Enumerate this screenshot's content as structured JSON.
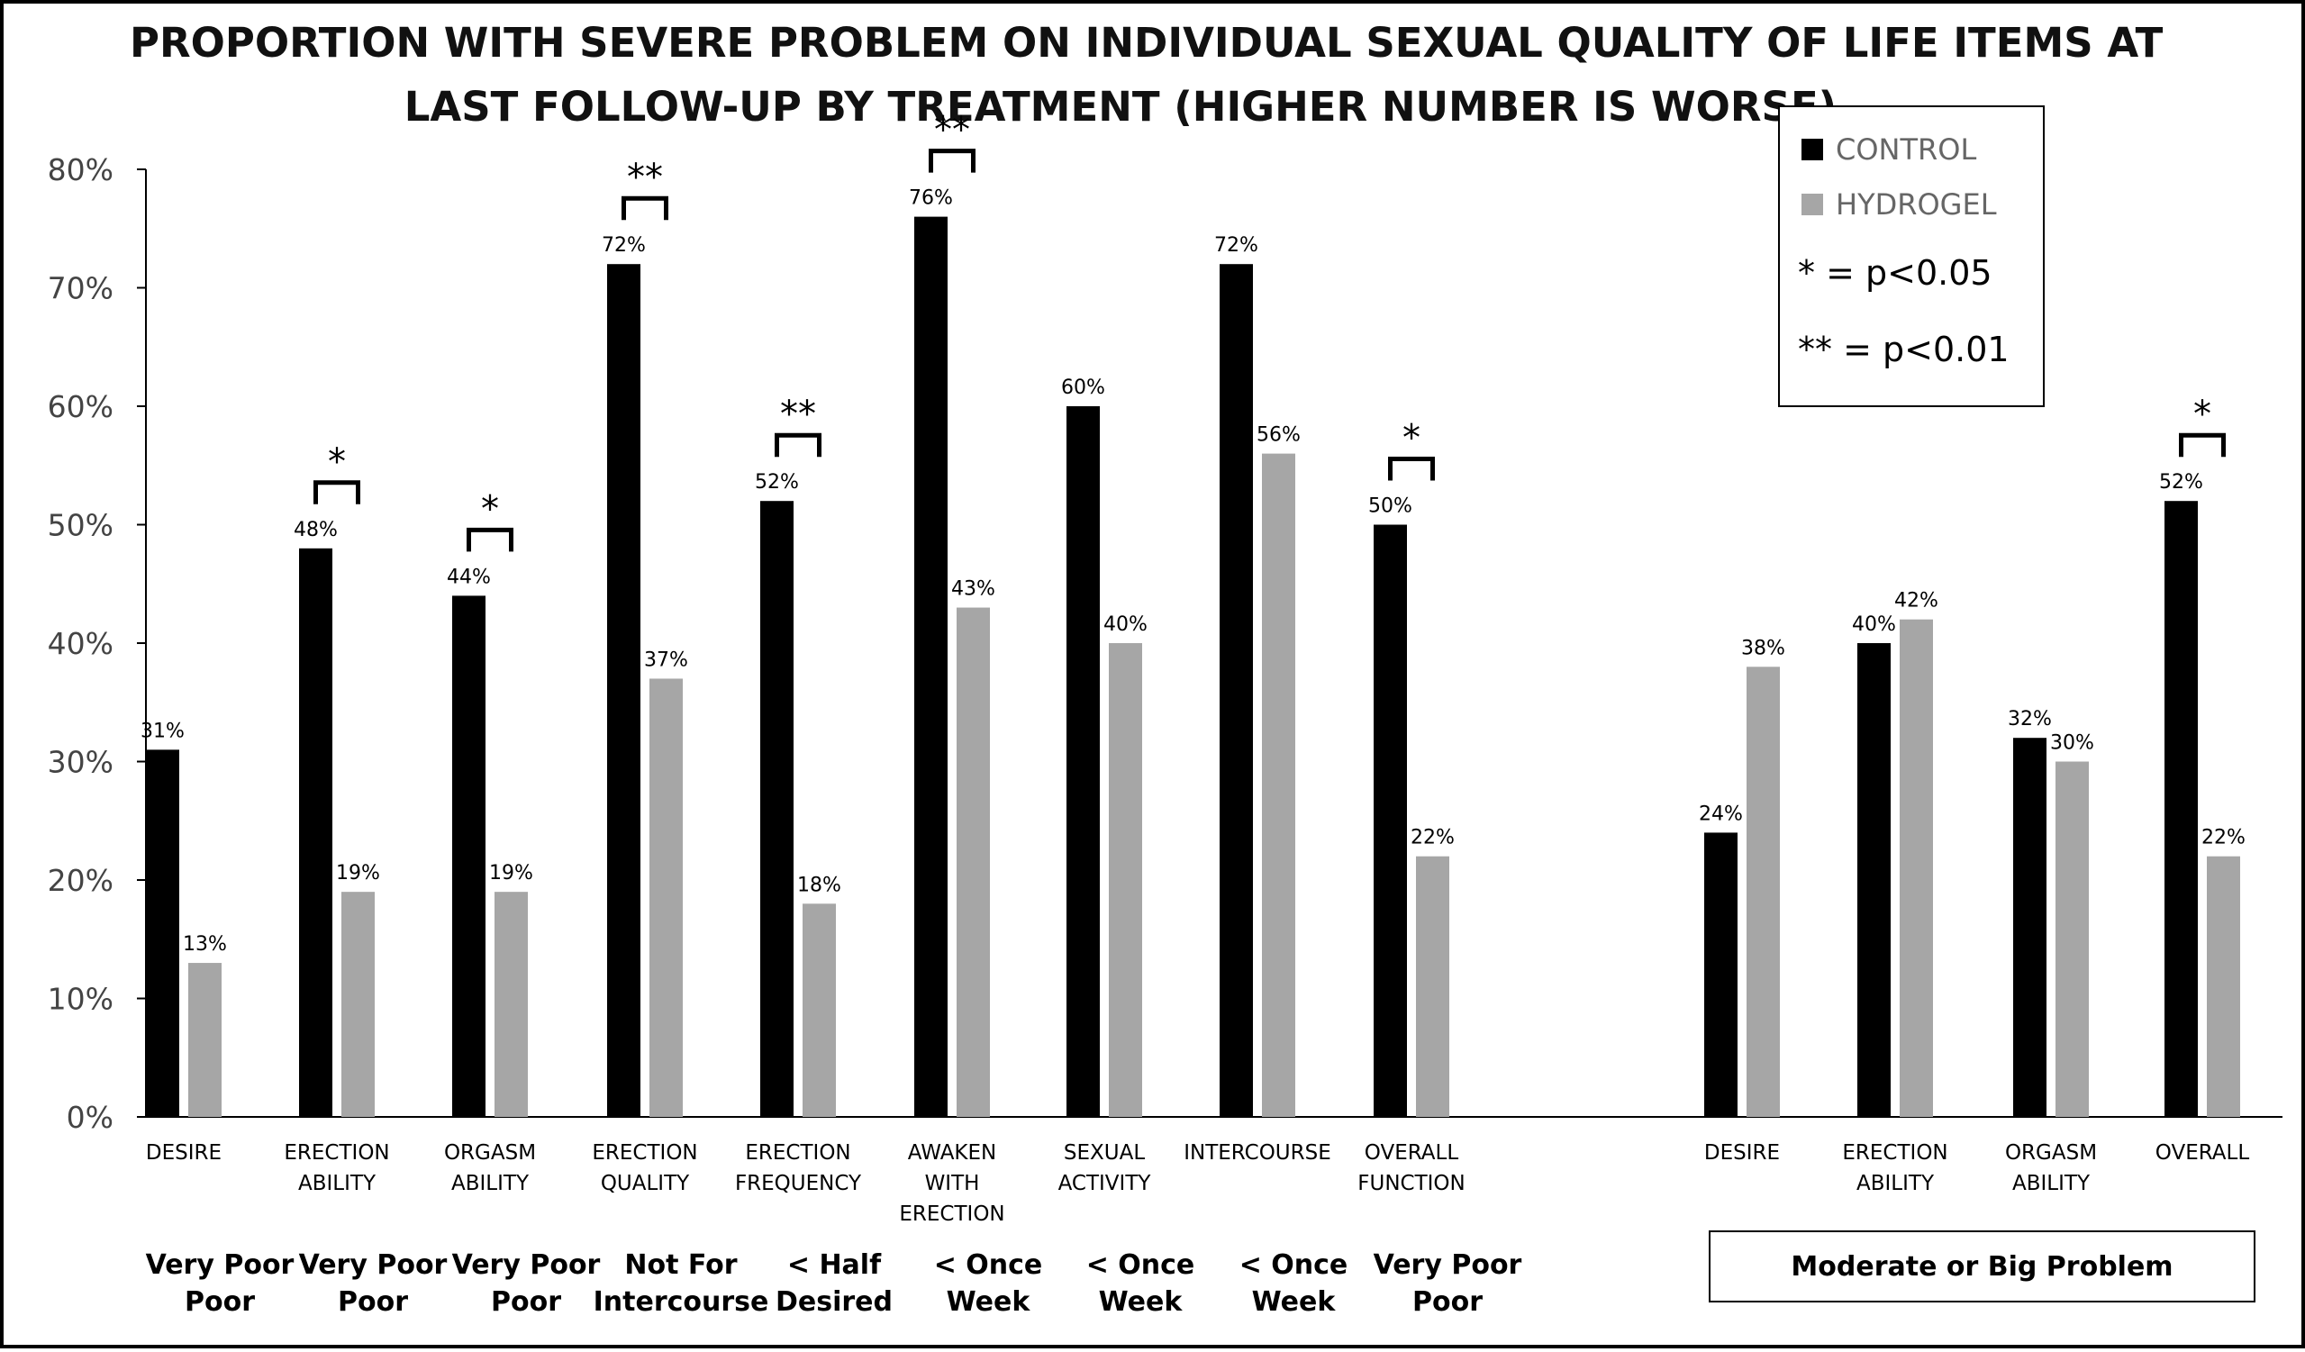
{
  "chart_data": {
    "type": "bar",
    "title_lines": [
      "PROPORTION WITH SEVERE PROBLEM ON INDIVIDUAL SEXUAL QUALITY OF LIFE ITEMS AT",
      "LAST FOLLOW-UP BY TREATMENT (HIGHER NUMBER IS WORSE)"
    ],
    "ylim": [
      0,
      80
    ],
    "y_ticks": [
      "0%",
      "10%",
      "20%",
      "30%",
      "40%",
      "50%",
      "60%",
      "70%",
      "80%"
    ],
    "categories": [
      {
        "label_lines": [
          "DESIRE"
        ],
        "control": 31,
        "hydrogel": 13,
        "control_label": "31%",
        "hydrogel_label": "13%",
        "sig": ""
      },
      {
        "label_lines": [
          "ERECTION",
          "ABILITY"
        ],
        "control": 48,
        "hydrogel": 19,
        "control_label": "48%",
        "hydrogel_label": "19%",
        "sig": "*"
      },
      {
        "label_lines": [
          "ORGASM",
          "ABILITY"
        ],
        "control": 44,
        "hydrogel": 19,
        "control_label": "44%",
        "hydrogel_label": "19%",
        "sig": "*"
      },
      {
        "label_lines": [
          "ERECTION",
          "QUALITY"
        ],
        "control": 72,
        "hydrogel": 37,
        "control_label": "72%",
        "hydrogel_label": "37%",
        "sig": "**"
      },
      {
        "label_lines": [
          "ERECTION",
          "FREQUENCY"
        ],
        "control": 52,
        "hydrogel": 18,
        "control_label": "52%",
        "hydrogel_label": "18%",
        "sig": "**"
      },
      {
        "label_lines": [
          "AWAKEN",
          "WITH",
          "ERECTION"
        ],
        "control": 76,
        "hydrogel": 43,
        "control_label": "76%",
        "hydrogel_label": "43%",
        "sig": "**"
      },
      {
        "label_lines": [
          "SEXUAL",
          "ACTIVITY"
        ],
        "control": 60,
        "hydrogel": 40,
        "control_label": "60%",
        "hydrogel_label": "40%",
        "sig": ""
      },
      {
        "label_lines": [
          "INTERCOURSE"
        ],
        "control": 72,
        "hydrogel": 56,
        "control_label": "72%",
        "hydrogel_label": "56%",
        "sig": ""
      },
      {
        "label_lines": [
          "OVERALL",
          "FUNCTION"
        ],
        "control": 50,
        "hydrogel": 22,
        "control_label": "50%",
        "hydrogel_label": "22%",
        "sig": "*"
      },
      {
        "label_lines": [
          "DESIRE"
        ],
        "control": 24,
        "hydrogel": 38,
        "control_label": "24%",
        "hydrogel_label": "38%",
        "sig": ""
      },
      {
        "label_lines": [
          "ERECTION",
          "ABILITY"
        ],
        "control": 40,
        "hydrogel": 42,
        "control_label": "40%",
        "hydrogel_label": "42%",
        "sig": ""
      },
      {
        "label_lines": [
          "ORGASM",
          "ABILITY"
        ],
        "control": 32,
        "hydrogel": 30,
        "control_label": "32%",
        "hydrogel_label": "30%",
        "sig": ""
      },
      {
        "label_lines": [
          "OVERALL"
        ],
        "control": 52,
        "hydrogel": 22,
        "control_label": "52%",
        "hydrogel_label": "22%",
        "sig": "*"
      }
    ],
    "series": [
      {
        "name": "CONTROL",
        "color": "#000000"
      },
      {
        "name": "HYDROGEL",
        "color": "#a6a6a6"
      }
    ],
    "legend": {
      "control": "CONTROL",
      "hydrogel": "HYDROGEL",
      "sig1": "* = p<0.05",
      "sig2": "** = p<0.01"
    },
    "thresholds": [
      {
        "lines": [
          "Very Poor",
          "Poor"
        ]
      },
      {
        "lines": [
          "Very Poor",
          "Poor"
        ]
      },
      {
        "lines": [
          "Very Poor",
          "Poor"
        ]
      },
      {
        "lines": [
          "Not For",
          "Intercourse"
        ]
      },
      {
        "lines": [
          "< Half",
          "Desired"
        ]
      },
      {
        "lines": [
          "< Once",
          "Week"
        ]
      },
      {
        "lines": [
          "< Once",
          "Week"
        ]
      },
      {
        "lines": [
          "< Once",
          "Week"
        ]
      },
      {
        "lines": [
          "Very Poor",
          "Poor"
        ]
      }
    ],
    "group_label": "Moderate or Big Problem"
  }
}
